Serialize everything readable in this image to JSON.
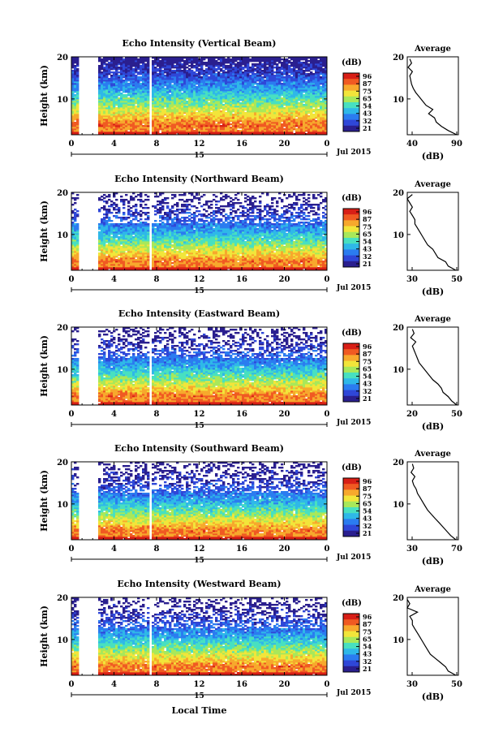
{
  "chart_data": [
    {
      "type": "heatmap",
      "title": "Echo Intensity (Vertical Beam)",
      "ylabel": "Height (km)",
      "yticks": [
        "20",
        "10"
      ],
      "xticks": [
        "0",
        "4",
        "8",
        "12",
        "16",
        "20",
        "0"
      ],
      "date_tick": "15",
      "date_label": "Jul 2015",
      "colorbar_unit": "(dB)",
      "colorbar_ticks": [
        "96",
        "87",
        "75",
        "65",
        "54",
        "43",
        "32",
        "21"
      ],
      "xlim": [
        0,
        24
      ],
      "ylim": [
        1.5,
        20
      ],
      "data_gaps_hours": [
        [
          0.8,
          2.6
        ],
        [
          7.3,
          7.6
        ]
      ],
      "profile": {
        "title": "Average",
        "xlabel": "(dB)",
        "xticks": [
          "40",
          "90"
        ],
        "xlim": [
          30,
          90
        ],
        "yticks": [
          "20",
          "10"
        ],
        "heights": [
          1.5,
          2.5,
          3.5,
          4.5,
          5.5,
          6.5,
          7.5,
          8.5,
          9.5,
          10.5,
          11.5,
          12.5,
          13.5,
          14.5,
          15.5,
          16.5,
          17.5,
          18.5,
          19.5
        ],
        "values": [
          88,
          78,
          70,
          64,
          62,
          55,
          60,
          52,
          48,
          44,
          40,
          37,
          35,
          34,
          33,
          36,
          31,
          35,
          33
        ]
      }
    },
    {
      "type": "heatmap",
      "title": "Echo Intensity (Northward Beam)",
      "ylabel": "Height (km)",
      "yticks": [
        "20",
        "10"
      ],
      "xticks": [
        "0",
        "4",
        "8",
        "12",
        "16",
        "20",
        "0"
      ],
      "date_tick": "15",
      "date_label": "Jul 2015",
      "colorbar_unit": "(dB)",
      "colorbar_ticks": [
        "96",
        "87",
        "75",
        "65",
        "54",
        "43",
        "32",
        "21"
      ],
      "xlim": [
        0,
        24
      ],
      "ylim": [
        1.5,
        20
      ],
      "data_gaps_hours": [
        [
          0.8,
          2.6
        ],
        [
          7.3,
          7.6
        ]
      ],
      "profile": {
        "title": "Average",
        "xlabel": "(dB)",
        "xticks": [
          "30",
          "50"
        ],
        "xlim": [
          30,
          50
        ],
        "yticks": [
          "20",
          "10"
        ],
        "heights": [
          1.5,
          2.5,
          3.5,
          4.5,
          5.5,
          6.5,
          7.5,
          8.5,
          9.5,
          10.5,
          11.5,
          12.5,
          13.5,
          14.5,
          15.5,
          16.5,
          17.5,
          18.5,
          19.5
        ],
        "values": [
          49,
          46,
          45,
          42,
          41,
          40,
          38,
          37,
          36,
          35,
          34,
          33,
          33,
          32,
          31,
          32,
          31,
          30,
          32
        ]
      }
    },
    {
      "type": "heatmap",
      "title": "Echo Intensity (Eastward Beam)",
      "ylabel": "Height (km)",
      "yticks": [
        "20",
        "10"
      ],
      "xticks": [
        "0",
        "4",
        "8",
        "12",
        "16",
        "20",
        "0"
      ],
      "date_tick": "15",
      "date_label": "Jul 2015",
      "colorbar_unit": "(dB)",
      "colorbar_ticks": [
        "96",
        "87",
        "75",
        "65",
        "54",
        "43",
        "32",
        "21"
      ],
      "xlim": [
        0,
        24
      ],
      "ylim": [
        1.5,
        20
      ],
      "data_gaps_hours": [
        [
          0.8,
          2.6
        ],
        [
          7.3,
          7.6
        ]
      ],
      "profile": {
        "title": "Average",
        "xlabel": "(dB)",
        "xticks": [
          "20",
          "50"
        ],
        "xlim": [
          20,
          50
        ],
        "yticks": [
          "20",
          "10"
        ],
        "heights": [
          1.5,
          2.5,
          3.5,
          4.5,
          5.5,
          6.5,
          7.5,
          8.5,
          9.5,
          10.5,
          11.5,
          12.5,
          13.5,
          14.5,
          15.5,
          16.5,
          17.5,
          18.5,
          19.5
        ],
        "values": [
          49,
          46,
          44,
          41,
          40,
          38,
          35,
          33,
          31,
          29,
          27,
          26,
          25,
          24,
          23,
          25,
          22,
          24,
          23
        ]
      }
    },
    {
      "type": "heatmap",
      "title": "Echo Intensity (Southward Beam)",
      "ylabel": "Height (km)",
      "yticks": [
        "20",
        "10"
      ],
      "xticks": [
        "0",
        "4",
        "8",
        "12",
        "16",
        "20",
        "0"
      ],
      "date_tick": "15",
      "date_label": "Jul 2015",
      "colorbar_unit": "(dB)",
      "colorbar_ticks": [
        "96",
        "87",
        "75",
        "65",
        "54",
        "43",
        "32",
        "21"
      ],
      "xlim": [
        0,
        24
      ],
      "ylim": [
        1.5,
        20
      ],
      "data_gaps_hours": [
        [
          0.8,
          2.6
        ],
        [
          7.3,
          7.6
        ]
      ],
      "profile": {
        "title": "Average",
        "xlabel": "(dB)",
        "xticks": [
          "30",
          "70"
        ],
        "xlim": [
          30,
          70
        ],
        "yticks": [
          "20",
          "10"
        ],
        "heights": [
          1.5,
          2.5,
          3.5,
          4.5,
          5.5,
          6.5,
          7.5,
          8.5,
          9.5,
          10.5,
          11.5,
          12.5,
          13.5,
          14.5,
          15.5,
          16.5,
          17.5,
          18.5,
          19.5
        ],
        "values": [
          68,
          64,
          61,
          58,
          55,
          52,
          49,
          46,
          44,
          42,
          40,
          38,
          37,
          35,
          34,
          36,
          33,
          35,
          34
        ]
      }
    },
    {
      "type": "heatmap",
      "title": "Echo Intensity (Westward Beam)",
      "ylabel": "Height (km)",
      "yticks": [
        "20",
        "10"
      ],
      "xticks": [
        "0",
        "4",
        "8",
        "12",
        "16",
        "20",
        "0"
      ],
      "date_tick": "15",
      "date_label": "Jul 2015",
      "colorbar_unit": "(dB)",
      "colorbar_ticks": [
        "96",
        "87",
        "75",
        "65",
        "54",
        "43",
        "32",
        "21"
      ],
      "xlim": [
        0,
        24
      ],
      "ylim": [
        1.5,
        20
      ],
      "data_gaps_hours": [
        [
          0.8,
          2.6
        ],
        [
          7.3,
          7.6
        ]
      ],
      "profile": {
        "title": "Average",
        "xlabel": "(dB)",
        "xticks": [
          "30",
          "50"
        ],
        "xlim": [
          30,
          50
        ],
        "yticks": [
          "20",
          "10"
        ],
        "heights": [
          1.5,
          2.5,
          3.5,
          4.5,
          5.5,
          6.5,
          7.5,
          8.5,
          9.5,
          10.5,
          11.5,
          12.5,
          13.5,
          14.5,
          15.5,
          16.5,
          17.5,
          18.5,
          19.5
        ],
        "values": [
          49,
          46,
          45,
          43,
          41,
          39,
          38,
          37,
          36,
          35,
          34,
          33,
          32,
          32,
          31,
          34,
          30,
          31,
          30
        ]
      }
    }
  ],
  "shared_xlabel": "Local Time",
  "colormap": [
    "#2a1f8f",
    "#2f47d8",
    "#2b7cf0",
    "#2fb8e8",
    "#48e0c0",
    "#a8e85a",
    "#f2e53a",
    "#f7a92d",
    "#f05a22",
    "#d81f16"
  ]
}
